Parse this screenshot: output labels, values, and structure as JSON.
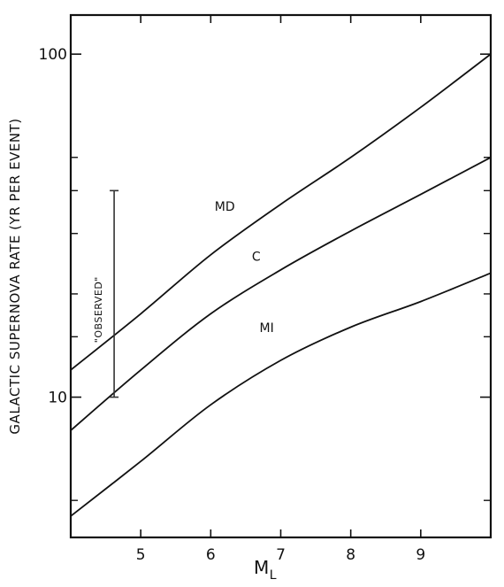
{
  "chart_data": {
    "type": "line",
    "xlabel": "M",
    "xlabel_subscript": "L",
    "ylabel": "GALACTIC SUPERNOVA RATE (YR PER EVENT)",
    "x_scale": "linear",
    "y_scale": "log",
    "xlim": [
      4.0,
      10.0
    ],
    "ylim": [
      3.9,
      130
    ],
    "x_ticks": [
      5,
      6,
      7,
      8,
      9
    ],
    "x_tick_labels": [
      "5",
      "6",
      "7",
      "8",
      "9"
    ],
    "y_ticks": [
      10,
      100
    ],
    "y_tick_labels": [
      "10",
      "100"
    ],
    "y_minor_ticks": [
      5,
      15,
      20,
      30,
      40,
      50
    ],
    "grid": false,
    "series": [
      {
        "name": "MD",
        "label_at": [
          6.2,
          35
        ],
        "x": [
          4.0,
          5.0,
          6.0,
          7.0,
          8.0,
          9.0,
          10.0
        ],
        "y": [
          12,
          17.5,
          26,
          36.5,
          50,
          70,
          100
        ]
      },
      {
        "name": "C",
        "label_at": [
          6.65,
          25
        ],
        "x": [
          4.0,
          5.0,
          6.0,
          7.0,
          8.0,
          9.0,
          10.0
        ],
        "y": [
          8,
          12,
          17.5,
          23.5,
          30.5,
          39,
          50
        ]
      },
      {
        "name": "MI",
        "label_at": [
          6.8,
          15.5
        ],
        "x": [
          4.0,
          5.0,
          6.0,
          7.0,
          8.0,
          9.0,
          10.0
        ],
        "y": [
          4.5,
          6.5,
          9.5,
          12.8,
          16,
          19,
          23
        ]
      }
    ],
    "annotations": [
      {
        "text": "\"OBSERVED\"",
        "type": "range_bar",
        "x": 4.62,
        "y_low": 10,
        "y_high": 40
      }
    ]
  }
}
